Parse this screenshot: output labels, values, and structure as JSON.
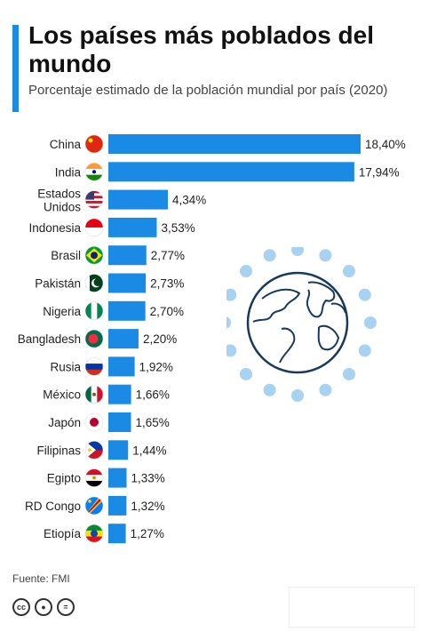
{
  "header": {
    "title": "Los países más poblados del mundo",
    "subtitle": "Porcentaje estimado de la población mundial por país (2020)"
  },
  "footer": {
    "source": "Fuente: FMI",
    "license_icons": [
      "cc-icon",
      "by-icon",
      "nd-icon"
    ]
  },
  "colors": {
    "bar": "#1a8ae5",
    "accent": "#1a8ae5",
    "globe": "#a8d2f2"
  },
  "chart_data": {
    "type": "bar",
    "orientation": "horizontal",
    "title": "Los países más poblados del mundo",
    "subtitle": "Porcentaje estimado de la población mundial por país (2020)",
    "categories": [
      "China",
      "India",
      "Estados Unidos",
      "Indonesia",
      "Brasil",
      "Pakistán",
      "Nigeria",
      "Bangladesh",
      "Rusia",
      "México",
      "Japón",
      "Filipinas",
      "Egipto",
      "RD Congo",
      "Etiopía"
    ],
    "values": [
      18.4,
      17.94,
      4.34,
      3.53,
      2.77,
      2.73,
      2.7,
      2.2,
      1.92,
      1.66,
      1.65,
      1.44,
      1.33,
      1.32,
      1.27
    ],
    "value_labels": [
      "18,40%",
      "17,94%",
      "4,34%",
      "3,53%",
      "2,77%",
      "2,73%",
      "2,70%",
      "2,20%",
      "1,92%",
      "1,66%",
      "1,65%",
      "1,44%",
      "1,33%",
      "1,32%",
      "1,27%"
    ],
    "flags": [
      "china-flag-icon",
      "india-flag-icon",
      "usa-flag-icon",
      "indonesia-flag-icon",
      "brazil-flag-icon",
      "pakistan-flag-icon",
      "nigeria-flag-icon",
      "bangladesh-flag-icon",
      "russia-flag-icon",
      "mexico-flag-icon",
      "japan-flag-icon",
      "philippines-flag-icon",
      "egypt-flag-icon",
      "drcongo-flag-icon",
      "ethiopia-flag-icon"
    ],
    "xlim": [
      0,
      18.4
    ],
    "grid": false,
    "legend": "none"
  }
}
